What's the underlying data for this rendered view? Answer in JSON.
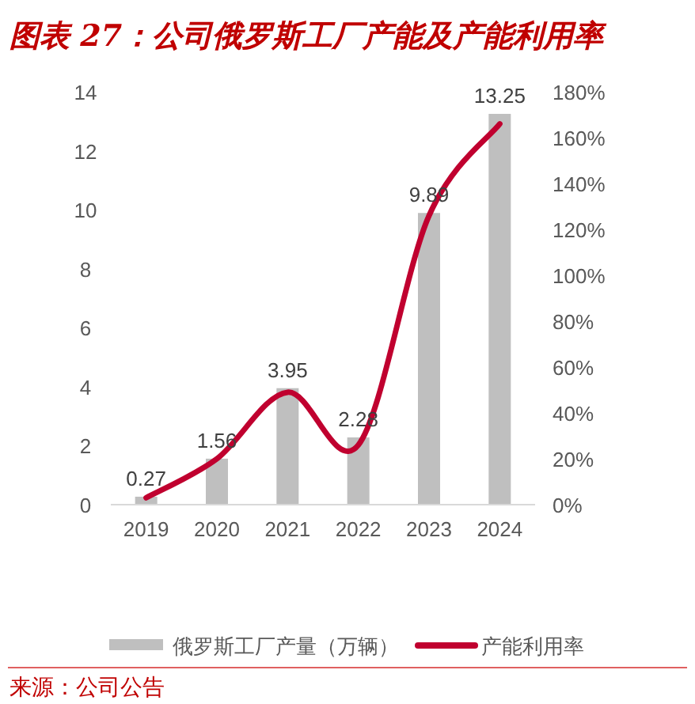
{
  "chart_data": {
    "type": "bar",
    "title": "图表 27：公司俄罗斯工厂产能及产能利用率",
    "categories": [
      "2019",
      "2020",
      "2021",
      "2022",
      "2023",
      "2024"
    ],
    "series": [
      {
        "name": "俄罗斯工厂产量（万辆）",
        "color": "#bfbfbf",
        "values": [
          0.27,
          1.56,
          3.95,
          2.28,
          9.89,
          13.25
        ],
        "value_labels": [
          "0.27",
          "1.56",
          "3.95",
          "2.28",
          "9.89",
          "13.25"
        ]
      },
      {
        "name": "产能利用率",
        "type": "line",
        "axis": "y2",
        "color": "#c0002f",
        "values": [
          3,
          20,
          49,
          26,
          126,
          166
        ]
      }
    ],
    "ylim": [
      0,
      14
    ],
    "yticks": [
      0,
      2,
      4,
      6,
      8,
      10,
      12,
      14
    ],
    "y2lim": [
      0,
      180
    ],
    "y2ticks": [
      {
        "value": 0,
        "label": "0%"
      },
      {
        "value": 20,
        "label": "20%"
      },
      {
        "value": 40,
        "label": "40%"
      },
      {
        "value": 60,
        "label": "60%"
      },
      {
        "value": 80,
        "label": "80%"
      },
      {
        "value": 100,
        "label": "100%"
      },
      {
        "value": 120,
        "label": "120%"
      },
      {
        "value": 140,
        "label": "140%"
      },
      {
        "value": 160,
        "label": "160%"
      },
      {
        "value": 180,
        "label": "180%"
      }
    ],
    "legend": "bottom",
    "annotations": [
      "来源：公司公告"
    ]
  }
}
